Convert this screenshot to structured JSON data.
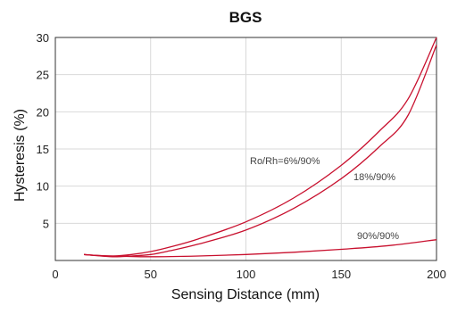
{
  "chart_data": {
    "type": "line",
    "title": "BGS",
    "xlabel": "Sensing Distance (mm)",
    "ylabel": "Hysteresis (%)",
    "xlim": [
      0,
      200
    ],
    "ylim": [
      0,
      30
    ],
    "xticks": [
      "0",
      "50",
      "100",
      "150",
      "200"
    ],
    "yticks": [
      "5",
      "10",
      "15",
      "20",
      "25",
      "30"
    ],
    "grid": true,
    "line_color": "#c8102e",
    "series": [
      {
        "name": "Ro/Rh=6%/90%",
        "x": [
          15,
          20,
          30,
          40,
          50,
          60,
          75,
          100,
          125,
          150,
          170,
          185,
          200
        ],
        "y": [
          0.8,
          0.7,
          0.6,
          0.8,
          1.2,
          1.8,
          2.9,
          5.2,
          8.4,
          12.8,
          17.4,
          21.7,
          30
        ]
      },
      {
        "name": "18%/90%",
        "x": [
          15,
          20,
          30,
          40,
          50,
          60,
          75,
          100,
          125,
          150,
          170,
          185,
          200
        ],
        "y": [
          0.8,
          0.7,
          0.5,
          0.6,
          0.8,
          1.3,
          2.2,
          4.1,
          7.0,
          11.0,
          15.3,
          19.5,
          29
        ]
      },
      {
        "name": "90%/90%",
        "x": [
          15,
          20,
          30,
          50,
          75,
          100,
          125,
          150,
          175,
          200
        ],
        "y": [
          0.8,
          0.7,
          0.6,
          0.5,
          0.6,
          0.8,
          1.1,
          1.5,
          2.0,
          2.8
        ]
      }
    ]
  }
}
